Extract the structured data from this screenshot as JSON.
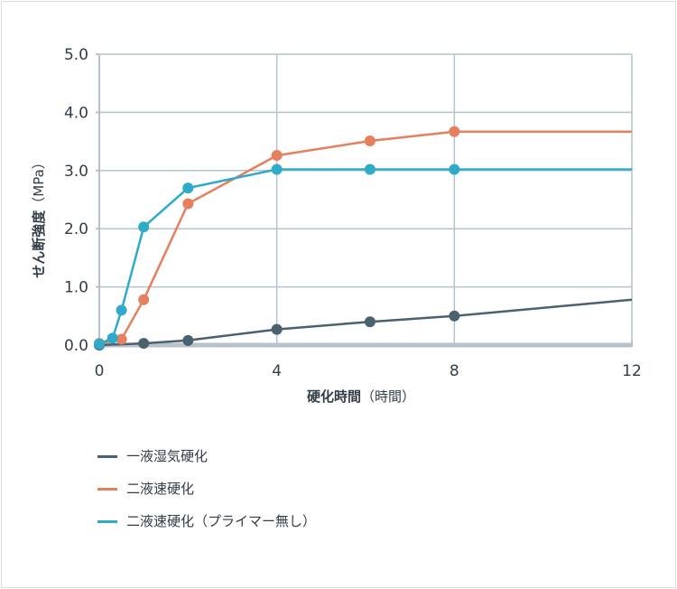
{
  "chart_data": {
    "type": "line",
    "xlabel_main": "硬化時間",
    "xlabel_unit": "（時間）",
    "ylabel_main": "せん断強度",
    "ylabel_unit": "（MPa）",
    "xlim": [
      0,
      12
    ],
    "ylim": [
      0,
      5
    ],
    "x_ticks": [
      0,
      4,
      8,
      12
    ],
    "y_ticks": [
      0,
      1,
      2,
      3,
      4,
      5
    ],
    "x_tick_labels": [
      "0",
      "4",
      "8",
      "12"
    ],
    "y_tick_labels": [
      "0.0",
      "1.0",
      "2.0",
      "3.0",
      "4.0",
      "5.0"
    ],
    "grid": true,
    "legend_position": "bottom-left",
    "series": [
      {
        "name": "一液湿気硬化",
        "color": "#4a6170",
        "x": [
          0,
          1,
          2,
          4,
          6.1,
          8,
          12
        ],
        "y": [
          0,
          0.03,
          0.08,
          0.27,
          0.4,
          0.5,
          0.78
        ],
        "markers": [
          true,
          true,
          true,
          true,
          true,
          true,
          false
        ]
      },
      {
        "name": "二液速硬化",
        "color": "#e57f5e",
        "x": [
          0,
          0.5,
          1,
          2,
          4,
          6.1,
          8,
          12
        ],
        "y": [
          0.03,
          0.1,
          0.78,
          2.43,
          3.26,
          3.51,
          3.67,
          3.67
        ],
        "markers": [
          true,
          true,
          true,
          true,
          true,
          true,
          true,
          false
        ]
      },
      {
        "name": "二液速硬化（プライマー無し）",
        "color": "#2eabc8",
        "x": [
          0,
          0.3,
          0.5,
          1,
          2,
          4,
          6.1,
          8,
          12
        ],
        "y": [
          0.02,
          0.12,
          0.6,
          2.03,
          2.7,
          3.02,
          3.02,
          3.02,
          3.02
        ],
        "markers": [
          true,
          true,
          true,
          true,
          true,
          true,
          true,
          true,
          false
        ]
      }
    ]
  }
}
